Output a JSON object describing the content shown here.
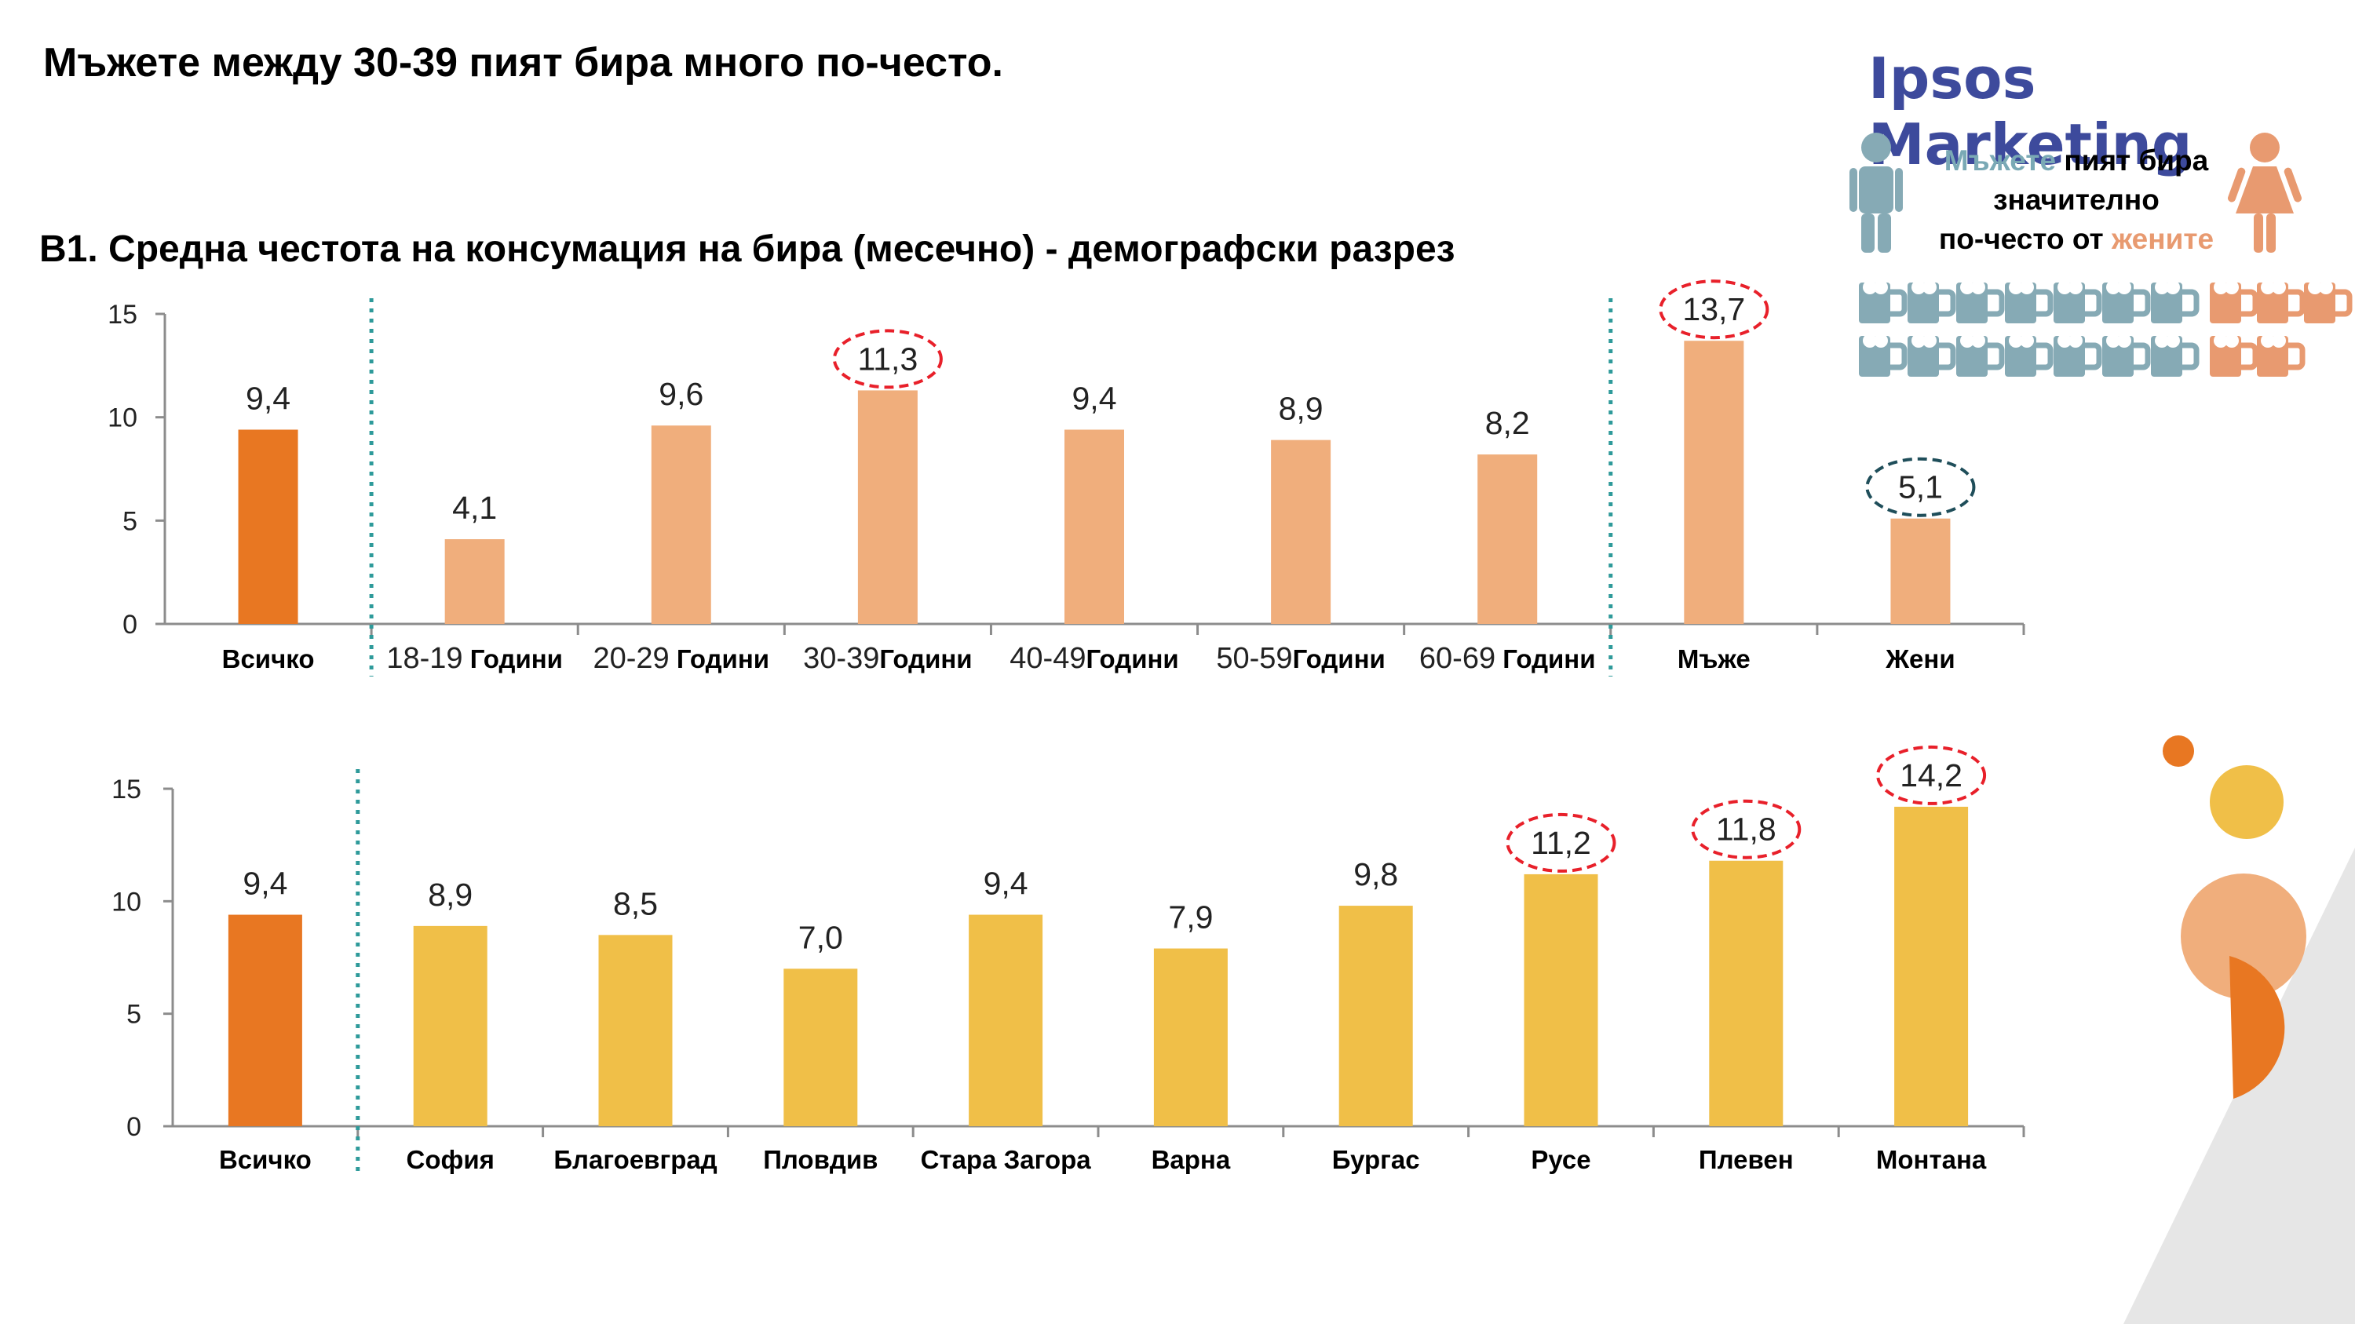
{
  "header": {
    "title": "Мъжете между 30-39 пият бира много по-често.",
    "subtitle": "В1. Средна честота на консумация на бира (месечно) - демографски разрез",
    "brand": "Ipsos Marketing"
  },
  "callout": {
    "men_word": "Мъжете",
    "line1_rest": " пият бира",
    "line2": "значително",
    "line3_start": "по-често от ",
    "women_word": "жените"
  },
  "colors": {
    "total_bar": "#e87722",
    "age_bar": "#f0ae7c",
    "region_bar": "#f0bf48",
    "axis": "#8c8c8c",
    "separator": "#2e9a9a",
    "highlight_red": "#e8202a",
    "highlight_teal": "#1f4e5a",
    "men_icon": "#86aab5",
    "women_icon": "#e89a70",
    "brand": "#3d4a9c"
  },
  "chart_data": [
    {
      "type": "bar",
      "title": "В1. Средна честота на консумация на бира (месечно) - демографски разрез",
      "xlabel": "",
      "ylabel": "",
      "ylim": [
        0,
        15
      ],
      "yticks": [
        "0",
        "5",
        "10",
        "15"
      ],
      "grid": false,
      "categories": [
        {
          "num": "",
          "label": "Всичко"
        },
        {
          "num": "18-19",
          "label": " Години"
        },
        {
          "num": "20-29",
          "label": " Години"
        },
        {
          "num": "30-39",
          "label": "Години"
        },
        {
          "num": "40-49",
          "label": "Години"
        },
        {
          "num": "50-59",
          "label": "Години"
        },
        {
          "num": "60-69",
          "label": " Години"
        },
        {
          "num": "",
          "label": "Мъже"
        },
        {
          "num": "",
          "label": "Жени"
        }
      ],
      "values": [
        9.4,
        4.1,
        9.6,
        11.3,
        9.4,
        8.9,
        8.2,
        13.7,
        5.1
      ],
      "value_labels": [
        "9,4",
        "4,1",
        "9,6",
        "11,3",
        "9,4",
        "8,9",
        "8,2",
        "13,7",
        "5,1"
      ],
      "bar_groups": [
        "total",
        "age",
        "age",
        "age",
        "age",
        "age",
        "age",
        "age",
        "age"
      ],
      "highlights": [
        {
          "index": 3,
          "style": "red"
        },
        {
          "index": 7,
          "style": "red"
        },
        {
          "index": 8,
          "style": "teal"
        }
      ],
      "separators_after": [
        0,
        6
      ]
    },
    {
      "type": "bar",
      "title": "",
      "xlabel": "",
      "ylabel": "",
      "ylim": [
        0,
        15
      ],
      "yticks": [
        "0",
        "5",
        "10",
        "15"
      ],
      "grid": false,
      "categories": [
        {
          "num": "",
          "label": "Всичко"
        },
        {
          "num": "",
          "label": "София"
        },
        {
          "num": "",
          "label": "Благоевград"
        },
        {
          "num": "",
          "label": "Пловдив"
        },
        {
          "num": "",
          "label": "Стара Загора"
        },
        {
          "num": "",
          "label": "Варна"
        },
        {
          "num": "",
          "label": "Бургас"
        },
        {
          "num": "",
          "label": "Русе"
        },
        {
          "num": "",
          "label": "Плевен"
        },
        {
          "num": "",
          "label": "Монтана"
        }
      ],
      "values": [
        9.4,
        8.9,
        8.5,
        7.0,
        9.4,
        7.9,
        9.8,
        11.2,
        11.8,
        14.2
      ],
      "value_labels": [
        "9,4",
        "8,9",
        "8,5",
        "7,0",
        "9,4",
        "7,9",
        "9,8",
        "11,2",
        "11,8",
        "14,2"
      ],
      "bar_groups": [
        "total",
        "region",
        "region",
        "region",
        "region",
        "region",
        "region",
        "region",
        "region",
        "region"
      ],
      "highlights": [
        {
          "index": 7,
          "style": "red"
        },
        {
          "index": 8,
          "style": "red"
        },
        {
          "index": 9,
          "style": "red"
        }
      ],
      "separators_after": [
        0
      ]
    }
  ]
}
